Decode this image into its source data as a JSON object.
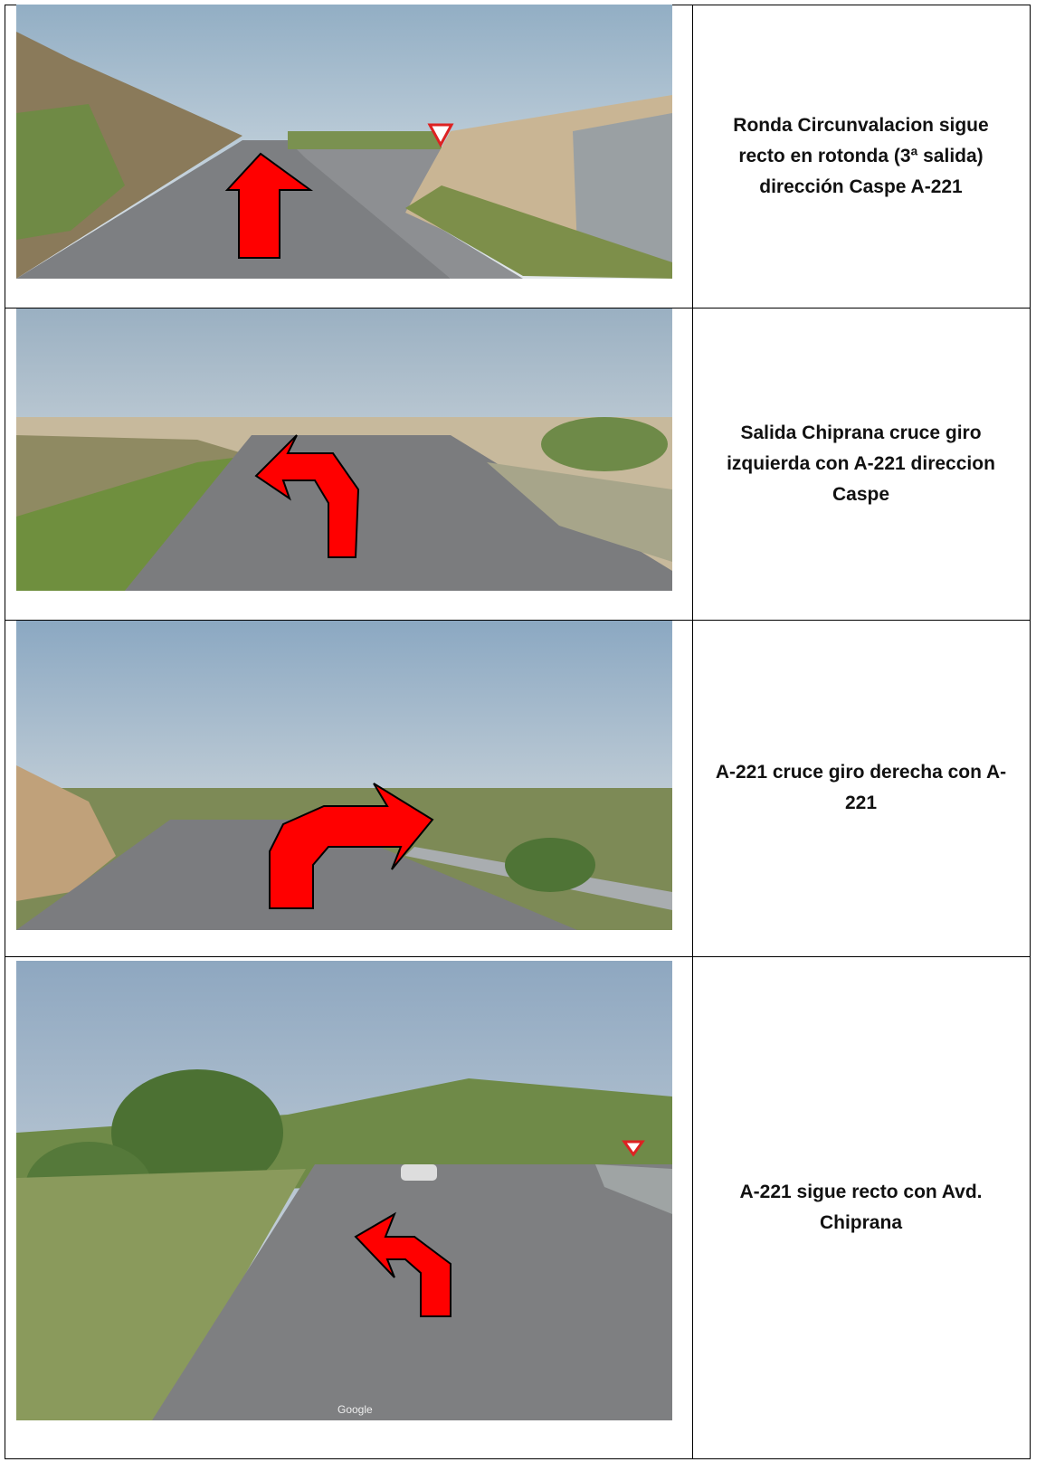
{
  "table": {
    "rows": [
      {
        "text": "Ronda Circunvalacion sigue recto en rotonda (3ª salida) dirección Caspe A-221"
      },
      {
        "text": "Salida Chiprana cruce giro izquierda con A-221 direccion Caspe"
      },
      {
        "text": "A-221 cruce giro derecha con A-221"
      },
      {
        "text": "A-221 sigue recto con Avd. Chiprana",
        "watermark": "Google"
      }
    ]
  }
}
